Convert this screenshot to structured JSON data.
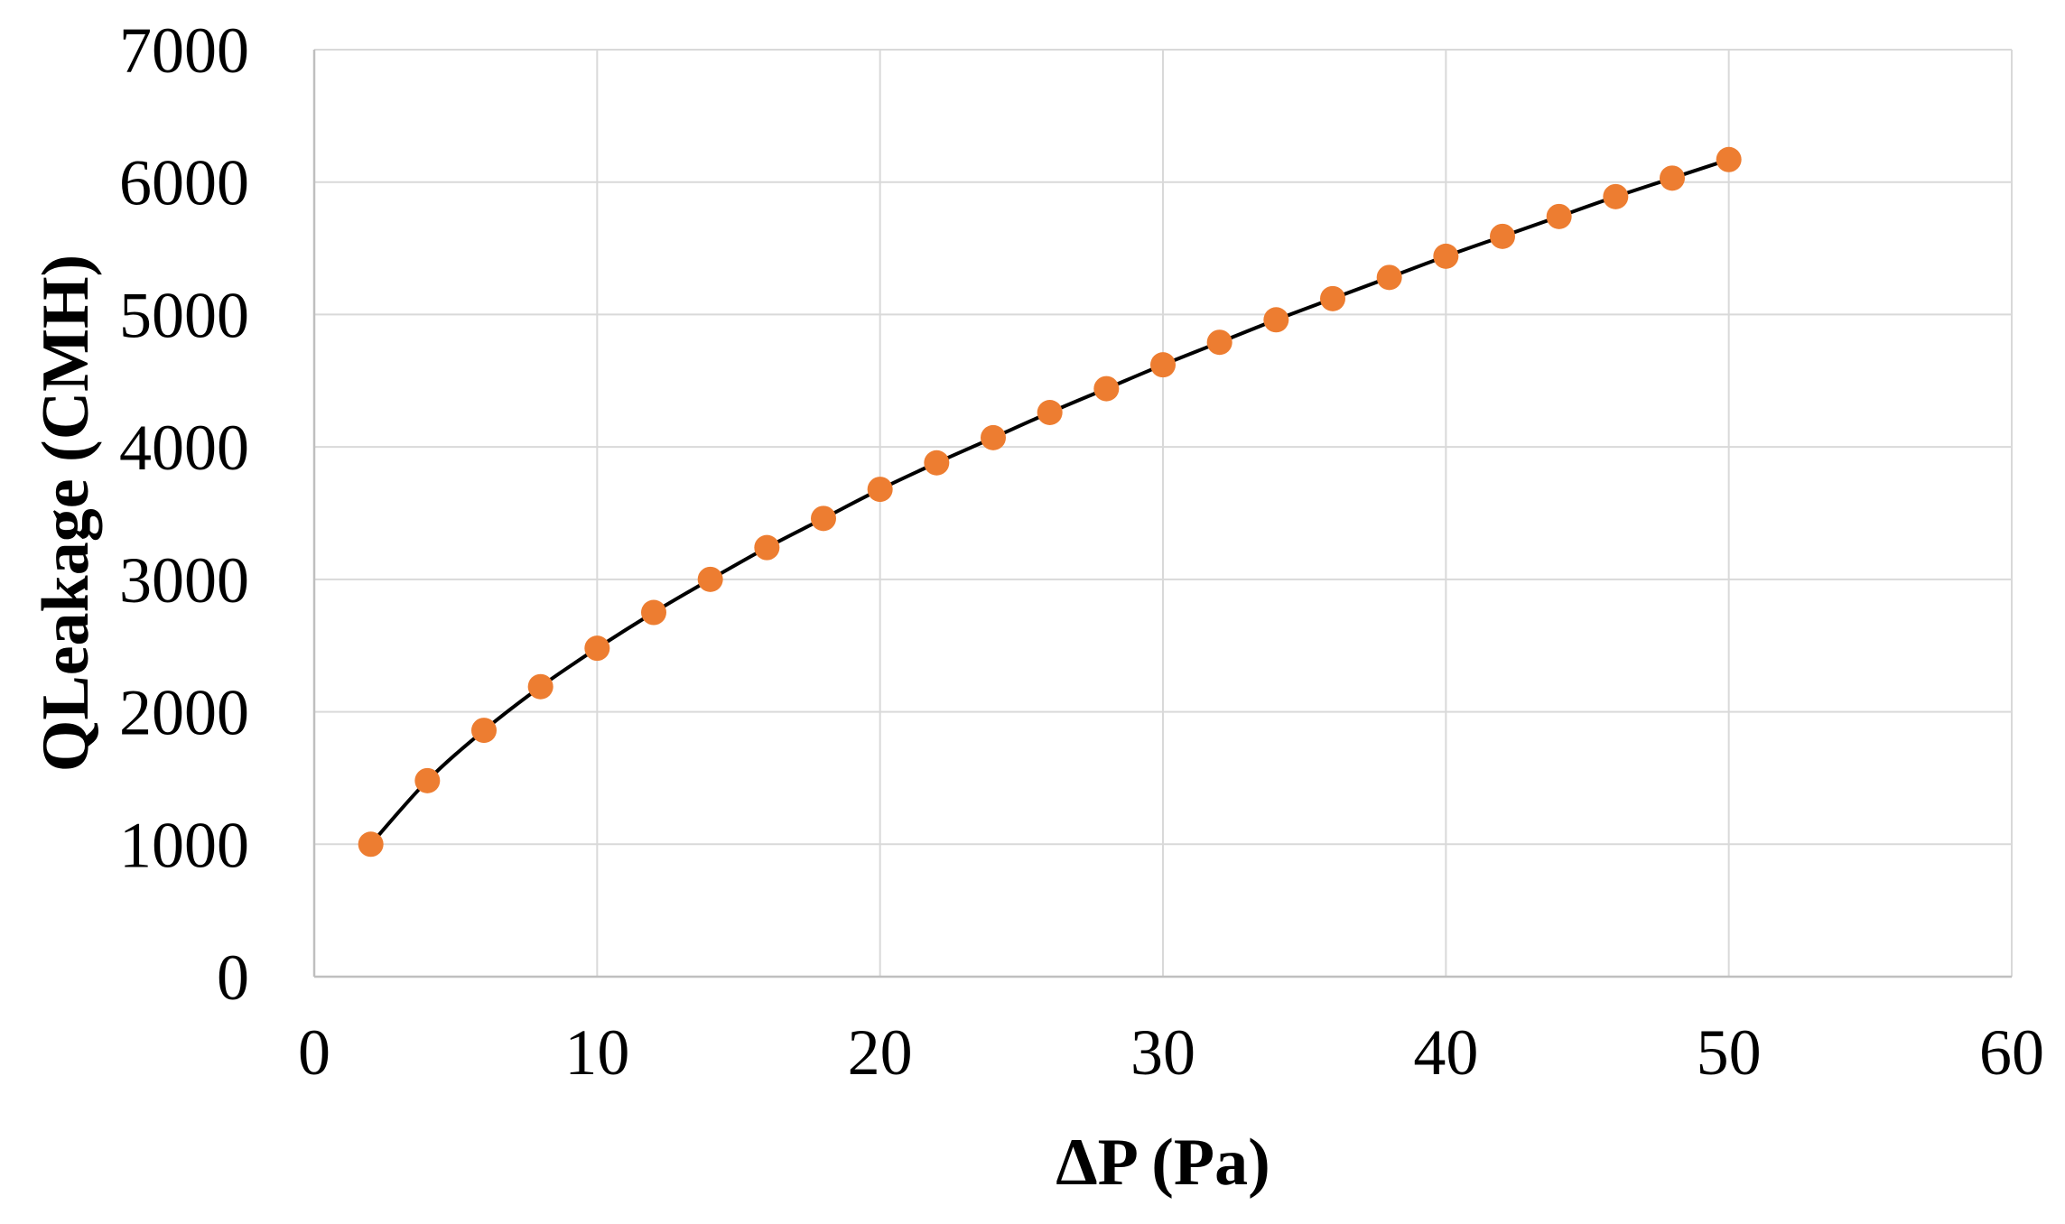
{
  "chart_data": {
    "type": "scatter",
    "title": "",
    "xlabel": "ΔP (Pa)",
    "ylabel": "QLeakage (CMH)",
    "xlim": [
      0,
      60
    ],
    "ylim": [
      0,
      7000
    ],
    "xticks": [
      0,
      10,
      20,
      30,
      40,
      50,
      60
    ],
    "yticks": [
      0,
      1000,
      2000,
      3000,
      4000,
      5000,
      6000,
      7000
    ],
    "grid": true,
    "legend": "none",
    "colors": {
      "marker": "#ED7D31",
      "line": "#000000",
      "grid": "#D9D9D9",
      "axis": "#BFBFBF"
    },
    "series": [
      {
        "x": [
          2,
          4,
          6,
          8,
          10,
          12,
          14,
          16,
          18,
          20,
          22,
          24,
          26,
          28,
          30,
          32,
          34,
          36,
          38,
          40,
          42,
          44,
          46,
          48,
          50
        ],
        "y": [
          1000,
          1480,
          1860,
          2190,
          2480,
          2750,
          3000,
          3240,
          3460,
          3680,
          3880,
          4070,
          4260,
          4440,
          4620,
          4790,
          4960,
          5120,
          5280,
          5440,
          5590,
          5740,
          5890,
          6030,
          6170
        ]
      }
    ]
  }
}
